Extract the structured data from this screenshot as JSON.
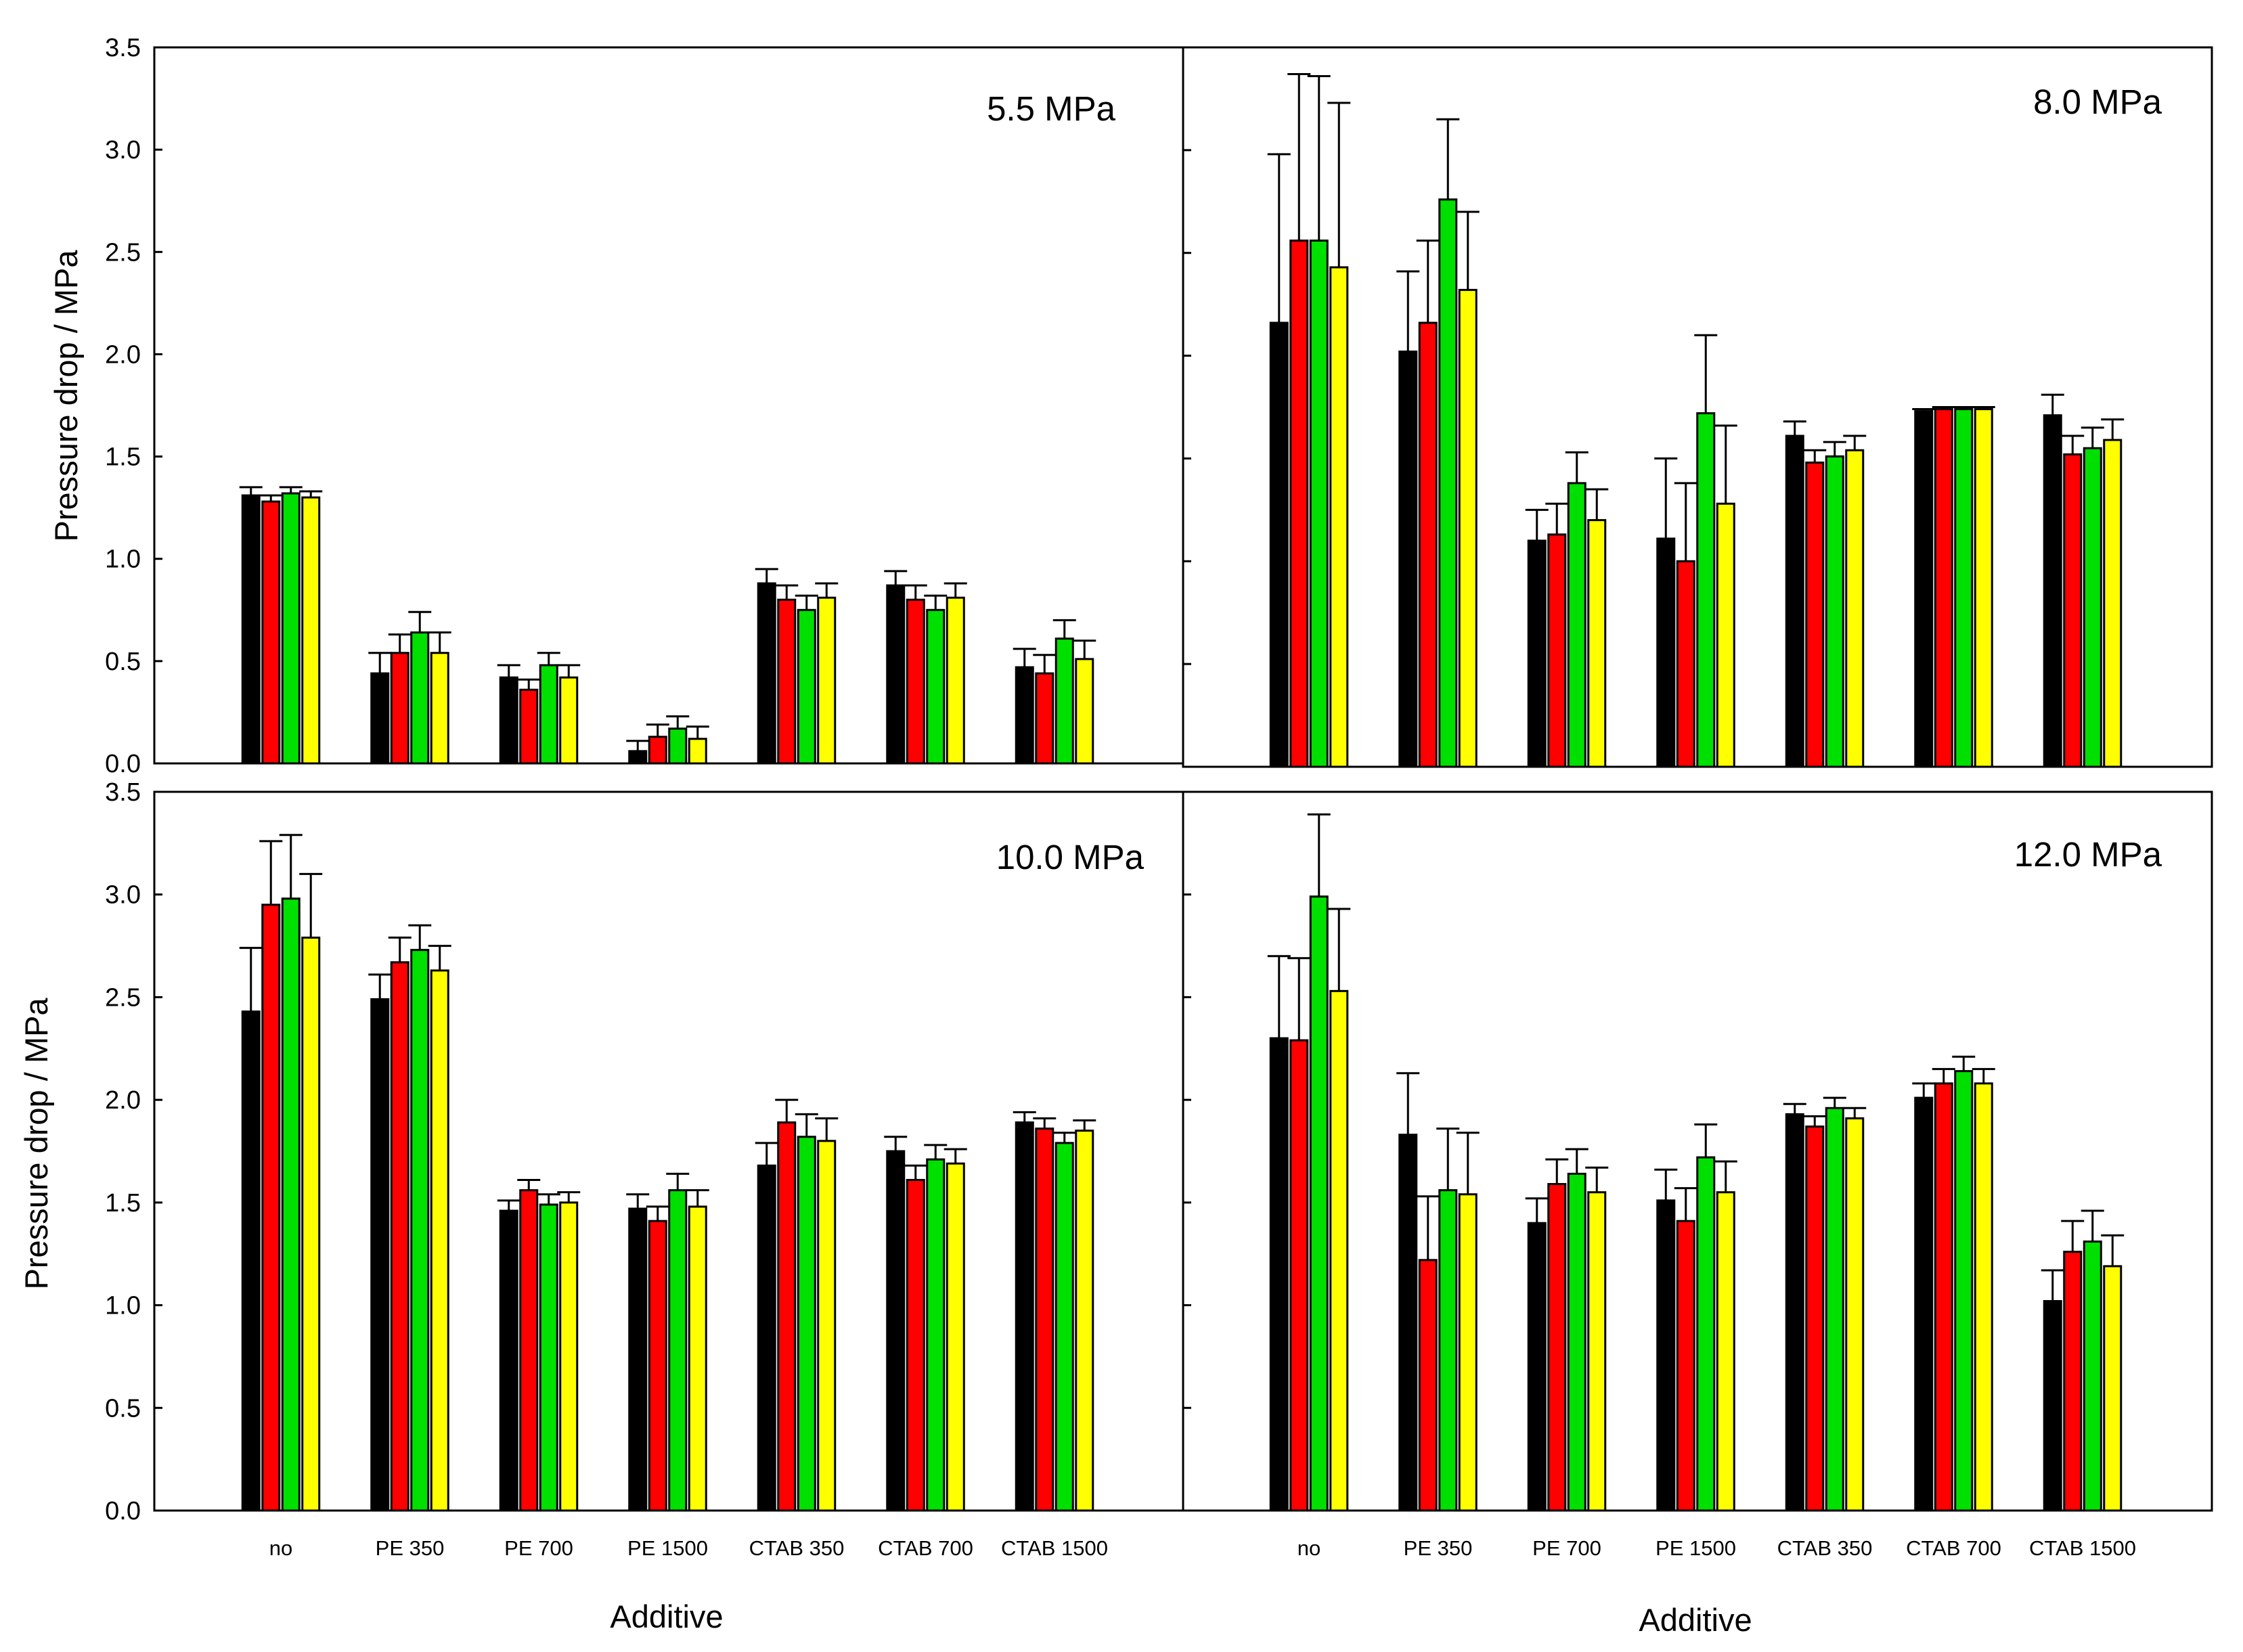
{
  "chart_data": {
    "type": "bar",
    "y_axis_title": "Pressure drop / MPa",
    "x_axis_title": "Additive",
    "categories": [
      "no",
      "PE 350",
      "PE 700",
      "PE 1500",
      "CTAB 350",
      "CTAB 700",
      "CTAB 1500"
    ],
    "series_colors": [
      "#000000",
      "#ff0000",
      "#00e000",
      "#ffff00"
    ],
    "ylim": [
      0,
      3.5
    ],
    "y_ticks": [
      "0.0",
      "0.5",
      "1.0",
      "1.5",
      "2.0",
      "2.5",
      "3.0",
      "3.5"
    ],
    "panels": [
      {
        "title": "5.5 MPa",
        "series": [
          {
            "values": [
              1.31,
              0.44,
              0.42,
              0.06,
              0.88,
              0.87,
              0.47
            ],
            "errors": [
              0.04,
              0.1,
              0.06,
              0.05,
              0.07,
              0.07,
              0.09
            ]
          },
          {
            "values": [
              1.28,
              0.54,
              0.36,
              0.13,
              0.8,
              0.8,
              0.44
            ],
            "errors": [
              0.03,
              0.09,
              0.05,
              0.06,
              0.07,
              0.07,
              0.09
            ]
          },
          {
            "values": [
              1.32,
              0.64,
              0.48,
              0.17,
              0.75,
              0.75,
              0.61
            ],
            "errors": [
              0.03,
              0.1,
              0.06,
              0.06,
              0.07,
              0.07,
              0.09
            ]
          },
          {
            "values": [
              1.3,
              0.54,
              0.42,
              0.12,
              0.81,
              0.81,
              0.51
            ],
            "errors": [
              0.03,
              0.1,
              0.06,
              0.06,
              0.07,
              0.07,
              0.09
            ]
          }
        ]
      },
      {
        "title": "8.0 MPa",
        "series": [
          {
            "values": [
              2.16,
              2.02,
              1.1,
              1.11,
              1.61,
              1.73,
              1.71
            ],
            "errors": [
              0.82,
              0.39,
              0.15,
              0.39,
              0.07,
              0.01,
              0.1
            ]
          },
          {
            "values": [
              2.56,
              2.16,
              1.13,
              1.0,
              1.48,
              1.74,
              1.52
            ],
            "errors": [
              0.81,
              0.4,
              0.15,
              0.38,
              0.06,
              0.01,
              0.09
            ]
          },
          {
            "values": [
              2.56,
              2.76,
              1.38,
              1.72,
              1.51,
              1.74,
              1.55
            ],
            "errors": [
              0.8,
              0.39,
              0.15,
              0.38,
              0.07,
              0.01,
              0.1
            ]
          },
          {
            "values": [
              2.43,
              2.32,
              1.2,
              1.28,
              1.54,
              1.74,
              1.59
            ],
            "errors": [
              0.8,
              0.38,
              0.15,
              0.38,
              0.07,
              0.01,
              0.1
            ]
          }
        ]
      },
      {
        "title": "10.0 MPa",
        "series": [
          {
            "values": [
              2.43,
              2.49,
              1.46,
              1.47,
              1.68,
              1.75,
              1.89
            ],
            "errors": [
              0.31,
              0.12,
              0.05,
              0.07,
              0.11,
              0.07,
              0.05
            ]
          },
          {
            "values": [
              2.95,
              2.67,
              1.56,
              1.41,
              1.89,
              1.61,
              1.86
            ],
            "errors": [
              0.31,
              0.12,
              0.05,
              0.07,
              0.11,
              0.07,
              0.05
            ]
          },
          {
            "values": [
              2.98,
              2.73,
              1.49,
              1.56,
              1.82,
              1.71,
              1.79
            ],
            "errors": [
              0.31,
              0.12,
              0.05,
              0.08,
              0.11,
              0.07,
              0.05
            ]
          },
          {
            "values": [
              2.79,
              2.63,
              1.5,
              1.48,
              1.8,
              1.69,
              1.85
            ],
            "errors": [
              0.31,
              0.12,
              0.05,
              0.08,
              0.11,
              0.07,
              0.05
            ]
          }
        ]
      },
      {
        "title": "12.0 MPa",
        "series": [
          {
            "values": [
              2.3,
              1.83,
              1.4,
              1.51,
              1.93,
              2.01,
              1.02
            ],
            "errors": [
              0.4,
              0.3,
              0.12,
              0.15,
              0.05,
              0.07,
              0.15
            ]
          },
          {
            "values": [
              2.29,
              1.22,
              1.59,
              1.41,
              1.87,
              2.08,
              1.26
            ],
            "errors": [
              0.4,
              0.31,
              0.12,
              0.16,
              0.05,
              0.07,
              0.15
            ]
          },
          {
            "values": [
              2.99,
              1.56,
              1.64,
              1.72,
              1.96,
              2.14,
              1.31
            ],
            "errors": [
              0.4,
              0.3,
              0.12,
              0.16,
              0.05,
              0.07,
              0.15
            ]
          },
          {
            "values": [
              2.53,
              1.54,
              1.55,
              1.55,
              1.91,
              2.08,
              1.19
            ],
            "errors": [
              0.4,
              0.3,
              0.12,
              0.15,
              0.05,
              0.07,
              0.15
            ]
          }
        ]
      }
    ]
  }
}
